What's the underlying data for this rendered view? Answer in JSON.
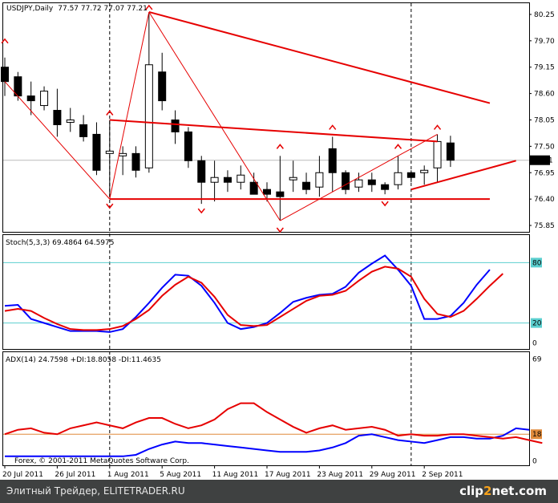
{
  "chart_data": [
    {
      "type": "candlestick",
      "title": "USDJPY,Daily",
      "ohlc_text": "77.57 77.72 77.07 77.21",
      "price_scale": [
        80.25,
        79.7,
        79.15,
        78.6,
        78.05,
        77.5,
        76.95,
        76.4,
        75.85
      ],
      "current_price": "77.21",
      "ylim": [
        75.75,
        80.45
      ],
      "x_labels": [
        {
          "text": "20 Jul 2011",
          "i": 0
        },
        {
          "text": "26 Jul 2011",
          "i": 4
        },
        {
          "text": "1 Aug 2011",
          "i": 8
        },
        {
          "text": "5 Aug 2011",
          "i": 12
        },
        {
          "text": "11 Aug 2011",
          "i": 16
        },
        {
          "text": "17 Aug 2011",
          "i": 20
        },
        {
          "text": "23 Aug 2011",
          "i": 24
        },
        {
          "text": "29 Aug 2011",
          "i": 28
        },
        {
          "text": "2 Sep 2011",
          "i": 32
        }
      ],
      "vlines": [
        8,
        31
      ],
      "candles": [
        {
          "o": 79.15,
          "h": 79.35,
          "l": 78.55,
          "c": 78.85
        },
        {
          "o": 78.95,
          "h": 79.05,
          "l": 78.45,
          "c": 78.55
        },
        {
          "o": 78.55,
          "h": 78.85,
          "l": 78.15,
          "c": 78.45
        },
        {
          "o": 78.35,
          "h": 78.75,
          "l": 78.25,
          "c": 78.65
        },
        {
          "o": 78.25,
          "h": 78.7,
          "l": 77.7,
          "c": 77.95
        },
        {
          "o": 78.0,
          "h": 78.3,
          "l": 77.8,
          "c": 78.05
        },
        {
          "o": 77.95,
          "h": 78.15,
          "l": 77.6,
          "c": 77.7
        },
        {
          "o": 77.75,
          "h": 78.0,
          "l": 76.9,
          "c": 77.0
        },
        {
          "o": 77.35,
          "h": 78.05,
          "l": 76.45,
          "c": 77.4
        },
        {
          "o": 77.3,
          "h": 77.5,
          "l": 76.9,
          "c": 77.35
        },
        {
          "o": 77.35,
          "h": 77.5,
          "l": 76.85,
          "c": 77.0
        },
        {
          "o": 77.05,
          "h": 80.3,
          "l": 76.95,
          "c": 79.2
        },
        {
          "o": 79.05,
          "h": 79.45,
          "l": 78.25,
          "c": 78.45
        },
        {
          "o": 78.05,
          "h": 78.25,
          "l": 77.55,
          "c": 77.8
        },
        {
          "o": 77.8,
          "h": 77.9,
          "l": 77.05,
          "c": 77.2
        },
        {
          "o": 77.2,
          "h": 77.3,
          "l": 76.3,
          "c": 76.75
        },
        {
          "o": 76.75,
          "h": 77.2,
          "l": 76.35,
          "c": 76.85
        },
        {
          "o": 76.85,
          "h": 77.0,
          "l": 76.55,
          "c": 76.75
        },
        {
          "o": 76.75,
          "h": 77.1,
          "l": 76.6,
          "c": 76.9
        },
        {
          "o": 76.75,
          "h": 76.95,
          "l": 76.5,
          "c": 76.5
        },
        {
          "o": 76.6,
          "h": 76.75,
          "l": 76.35,
          "c": 76.5
        },
        {
          "o": 76.55,
          "h": 77.3,
          "l": 75.95,
          "c": 76.45
        },
        {
          "o": 76.8,
          "h": 77.2,
          "l": 76.55,
          "c": 76.85
        },
        {
          "o": 76.75,
          "h": 76.95,
          "l": 76.5,
          "c": 76.6
        },
        {
          "o": 76.65,
          "h": 77.3,
          "l": 76.45,
          "c": 76.95
        },
        {
          "o": 77.45,
          "h": 77.7,
          "l": 76.55,
          "c": 76.95
        },
        {
          "o": 76.95,
          "h": 77.0,
          "l": 76.5,
          "c": 76.6
        },
        {
          "o": 76.65,
          "h": 76.95,
          "l": 76.55,
          "c": 76.8
        },
        {
          "o": 76.8,
          "h": 76.95,
          "l": 76.55,
          "c": 76.7
        },
        {
          "o": 76.7,
          "h": 76.75,
          "l": 76.5,
          "c": 76.6
        },
        {
          "o": 76.7,
          "h": 77.3,
          "l": 76.6,
          "c": 76.95
        },
        {
          "o": 76.95,
          "h": 77.0,
          "l": 76.75,
          "c": 76.85
        },
        {
          "o": 76.95,
          "h": 77.1,
          "l": 76.7,
          "c": 77.0
        },
        {
          "o": 77.05,
          "h": 77.75,
          "l": 76.75,
          "c": 77.6
        },
        {
          "o": 77.57,
          "h": 77.72,
          "l": 77.07,
          "c": 77.21
        }
      ],
      "fractals_up": [
        {
          "i": 0,
          "v": 79.6
        },
        {
          "i": 8,
          "v": 78.1
        },
        {
          "i": 11,
          "v": 80.3
        },
        {
          "i": 21,
          "v": 77.4
        },
        {
          "i": 25,
          "v": 77.8
        },
        {
          "i": 30,
          "v": 77.4
        },
        {
          "i": 33,
          "v": 77.8
        }
      ],
      "fractals_down": [
        {
          "i": 8,
          "v": 76.35
        },
        {
          "i": 15,
          "v": 76.25
        },
        {
          "i": 21,
          "v": 75.85
        },
        {
          "i": 29,
          "v": 76.4
        }
      ],
      "lines": [
        {
          "i1": 11,
          "v1": 80.3,
          "i2": 37,
          "v2": 78.4,
          "w": 2
        },
        {
          "i1": 8,
          "v1": 78.05,
          "i2": 33,
          "v2": 77.6,
          "w": 2
        },
        {
          "i1": 8,
          "v1": 76.4,
          "i2": 37,
          "v2": 76.4,
          "w": 2
        },
        {
          "i1": 31,
          "v1": 76.6,
          "i2": 39,
          "v2": 77.2,
          "w": 2
        },
        {
          "i1": 0,
          "v1": 78.85,
          "i2": 8,
          "v2": 76.4,
          "w": 1
        },
        {
          "i1": 8,
          "v1": 76.4,
          "i2": 11,
          "v2": 80.3,
          "w": 1
        },
        {
          "i1": 11,
          "v1": 80.3,
          "i2": 21,
          "v2": 75.95,
          "w": 1
        },
        {
          "i1": 21,
          "v1": 75.95,
          "i2": 33,
          "v2": 77.75,
          "w": 1
        }
      ]
    },
    {
      "type": "line",
      "title": "Stoch(5,3,3) 69.4864 64.5975",
      "scale": [
        "80",
        "20",
        "0"
      ],
      "levels": [
        80,
        20
      ],
      "ylim": [
        -5,
        105
      ],
      "series": [
        {
          "color": "#0000ff",
          "values": [
            37,
            38,
            24,
            20,
            16,
            12,
            12,
            12,
            11,
            14,
            26,
            40,
            55,
            68,
            67,
            57,
            40,
            20,
            14,
            16,
            20,
            30,
            41,
            45,
            48,
            49,
            56,
            70,
            79,
            87,
            73,
            57,
            24,
            24,
            27,
            40,
            58,
            73
          ]
        },
        {
          "color": "#e60000",
          "values": [
            32,
            34,
            32,
            25,
            19,
            14,
            13,
            13,
            14,
            17,
            24,
            33,
            47,
            58,
            66,
            60,
            46,
            28,
            18,
            17,
            18,
            26,
            34,
            42,
            47,
            48,
            52,
            62,
            71,
            76,
            74,
            66,
            44,
            29,
            26,
            32,
            44,
            57,
            69
          ]
        }
      ]
    },
    {
      "type": "line",
      "title": "ADX(14) 24.7598 +DI:18.8058 -DI:11.4635",
      "scale": [
        "69",
        "18",
        "0"
      ],
      "levels": [
        18
      ],
      "ylim": [
        -2,
        72
      ],
      "series": [
        {
          "color": "#0000ff",
          "values": [
            3,
            3,
            3,
            3,
            3,
            3,
            3,
            3,
            3,
            3,
            4,
            8,
            11,
            13,
            12,
            12,
            11,
            10,
            9,
            8,
            7,
            6,
            6,
            6,
            7,
            9,
            12,
            17,
            18,
            16,
            14,
            13,
            12,
            14,
            16,
            16,
            15,
            15,
            17,
            22,
            21
          ]
        },
        {
          "color": "#e60000",
          "values": [
            18,
            21,
            22,
            19,
            18,
            22,
            24,
            26,
            24,
            22,
            26,
            29,
            29,
            25,
            22,
            24,
            28,
            35,
            39,
            39,
            33,
            28,
            23,
            19,
            22,
            24,
            21,
            22,
            23,
            21,
            17,
            18,
            17,
            17,
            18,
            18,
            17,
            16,
            15,
            16,
            14,
            12
          ]
        }
      ]
    }
  ],
  "copyright": "Forex, © 2001-2011 MetaQuotes Software Corp.",
  "footer": {
    "site": "Элитный Трейдер, ELITETRADER.RU",
    "brand_a": "clip",
    "brand_num": "2",
    "brand_b": "net.com"
  }
}
